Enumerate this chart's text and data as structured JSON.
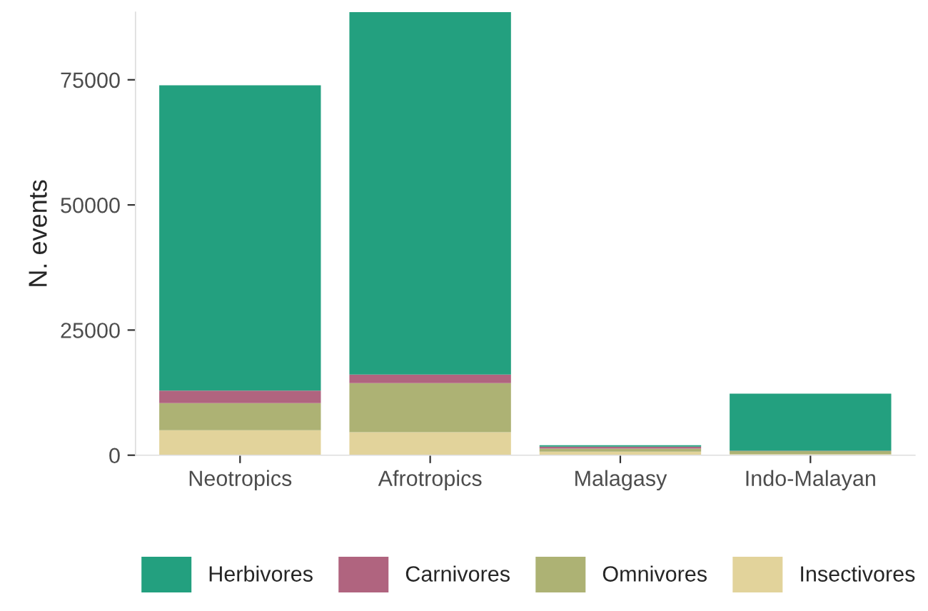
{
  "chart_data": {
    "type": "bar",
    "stacked": true,
    "ylabel": "N. events",
    "categories": [
      "Neotropics",
      "Afrotropics",
      "Malagasy",
      "Indo-Malayan"
    ],
    "series": [
      {
        "name": "Insectivores",
        "color": "#e2d39b",
        "values": [
          5000,
          4600,
          700,
          200
        ]
      },
      {
        "name": "Omnivores",
        "color": "#adb274",
        "values": [
          5400,
          9800,
          600,
          600
        ]
      },
      {
        "name": "Carnivores",
        "color": "#b0647f",
        "values": [
          2500,
          1700,
          400,
          100
        ]
      },
      {
        "name": "Herbivores",
        "color": "#23a07f",
        "values": [
          61000,
          72400,
          300,
          11400
        ]
      }
    ],
    "ylim": [
      0,
      88500
    ],
    "yticks": [
      0,
      25000,
      50000,
      75000
    ],
    "grid": false,
    "legend": "bottom"
  }
}
